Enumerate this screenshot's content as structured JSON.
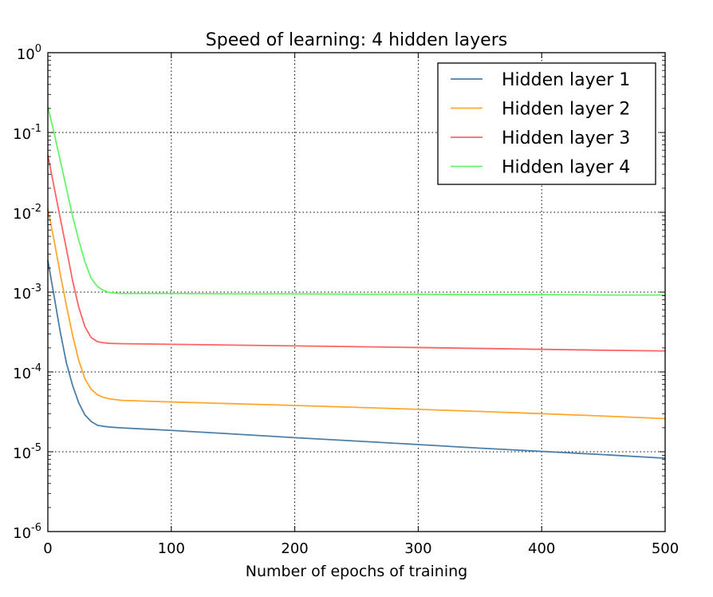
{
  "chart_data": {
    "type": "line",
    "title": "Speed of learning: 4 hidden layers",
    "xlabel": "Number of epochs of training",
    "ylabel": "",
    "xlim": [
      0,
      500
    ],
    "ylim": [
      1e-06,
      1
    ],
    "yscale": "log",
    "grid": true,
    "legend_position": "top-right",
    "x_ticks": [
      0,
      100,
      200,
      300,
      400,
      500
    ],
    "y_ticks": [
      {
        "base": "10",
        "exp": "0",
        "value": 1
      },
      {
        "base": "10",
        "exp": "-1",
        "value": 0.1
      },
      {
        "base": "10",
        "exp": "-2",
        "value": 0.01
      },
      {
        "base": "10",
        "exp": "-3",
        "value": 0.001
      },
      {
        "base": "10",
        "exp": "-4",
        "value": 0.0001
      },
      {
        "base": "10",
        "exp": "-5",
        "value": 1e-05
      },
      {
        "base": "10",
        "exp": "-6",
        "value": 1e-06
      }
    ],
    "series": [
      {
        "name": "Hidden layer 1",
        "color": "#4c7fa8",
        "x": [
          0,
          5,
          10,
          15,
          20,
          25,
          30,
          35,
          40,
          45,
          50,
          60,
          80,
          100,
          150,
          200,
          250,
          300,
          350,
          400,
          450,
          500
        ],
        "y": [
          0.0025,
          0.0009,
          0.00032,
          0.00013,
          6.8e-05,
          4.1e-05,
          2.9e-05,
          2.4e-05,
          2.15e-05,
          2.08e-05,
          2.04e-05,
          1.99e-05,
          1.92e-05,
          1.85e-05,
          1.67e-05,
          1.5e-05,
          1.36e-05,
          1.23e-05,
          1.11e-05,
          1.01e-05,
          9.2e-06,
          8.3e-06
        ]
      },
      {
        "name": "Hidden layer 2",
        "color": "#ffa82e",
        "x": [
          0,
          5,
          10,
          15,
          20,
          25,
          30,
          35,
          40,
          45,
          50,
          60,
          80,
          100,
          150,
          200,
          250,
          300,
          350,
          400,
          450,
          500
        ],
        "y": [
          0.011,
          0.0045,
          0.0017,
          0.00068,
          0.00029,
          0.00014,
          8.2e-05,
          6.1e-05,
          5.2e-05,
          4.8e-05,
          4.6e-05,
          4.4e-05,
          4.3e-05,
          4.2e-05,
          4e-05,
          3.8e-05,
          3.6e-05,
          3.4e-05,
          3.2e-05,
          3e-05,
          2.8e-05,
          2.6e-05
        ]
      },
      {
        "name": "Hidden layer 3",
        "color": "#ff6464",
        "x": [
          0,
          5,
          10,
          15,
          20,
          25,
          30,
          35,
          40,
          45,
          50,
          60,
          80,
          100,
          150,
          200,
          250,
          300,
          350,
          400,
          450,
          500
        ],
        "y": [
          0.052,
          0.021,
          0.0085,
          0.0035,
          0.0014,
          0.00065,
          0.00037,
          0.00027,
          0.00024,
          0.000232,
          0.000228,
          0.000226,
          0.000224,
          0.000222,
          0.000217,
          0.000212,
          0.000207,
          0.000202,
          0.000197,
          0.000192,
          0.000187,
          0.000183
        ]
      },
      {
        "name": "Hidden layer 4",
        "color": "#66f566",
        "x": [
          0,
          5,
          10,
          15,
          20,
          25,
          30,
          35,
          40,
          45,
          50,
          55,
          60,
          80,
          100,
          150,
          200,
          250,
          300,
          350,
          400,
          450,
          500
        ],
        "y": [
          0.21,
          0.1,
          0.045,
          0.02,
          0.009,
          0.0045,
          0.0024,
          0.0015,
          0.00118,
          0.00105,
          0.00099,
          0.00097,
          0.00096,
          0.00096,
          0.00096,
          0.00095,
          0.00095,
          0.00094,
          0.00094,
          0.00093,
          0.00093,
          0.00092,
          0.00092
        ]
      }
    ]
  }
}
